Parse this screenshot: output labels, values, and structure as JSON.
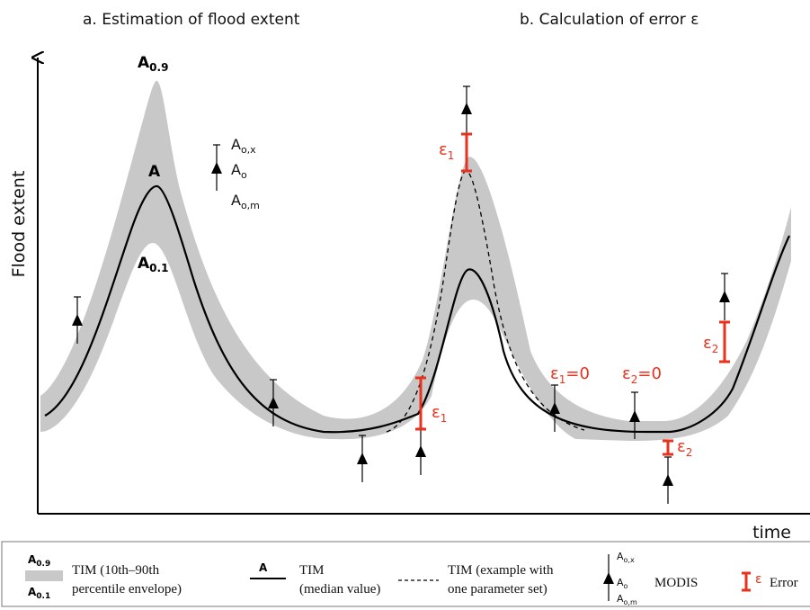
{
  "panels": {
    "a_title": "a. Estimation of flood extent",
    "b_title": "b. Calculation of error ε"
  },
  "axes": {
    "y_label": "Flood extent",
    "x_label": "time"
  },
  "annotations": {
    "a09_main": "A",
    "a09_sub": "0.9",
    "a_main": "A",
    "a01_main": "A",
    "a01_sub": "0.1",
    "aox_main": "A",
    "aox_sub": "o,x",
    "ao_main": "A",
    "ao_sub": "o",
    "aom_main": "A",
    "aom_sub": "o,m",
    "eps_symbol": "ε",
    "eps1_sub": "1",
    "eps2_sub": "2",
    "eps1_zero": "=0",
    "eps2_zero": "=0"
  },
  "legend": {
    "envelope_sym_top_main": "A",
    "envelope_sym_top_sub": "0.9",
    "envelope_sym_bot_main": "A",
    "envelope_sym_bot_sub": "0.1",
    "envelope_line1": "TIM (10th–90th",
    "envelope_line2": "percentile envelope)",
    "median_sym": "A",
    "median_line1": "TIM",
    "median_line2": "(median value)",
    "param_line1": "TIM (example with",
    "param_line2": "one parameter set)",
    "modis_sym_top_main": "A",
    "modis_sym_top_sub": "o,x",
    "modis_sym_mid_main": "A",
    "modis_sym_mid_sub": "o",
    "modis_sym_bot_main": "A",
    "modis_sym_bot_sub": "o,m",
    "modis_label": "MODIS",
    "error_sym": "ε",
    "error_label": "Error"
  },
  "colors": {
    "envelope": "#c8c8c8",
    "median": "#000000",
    "error": "#e8321e",
    "marker": "#000000"
  },
  "icons": {
    "observation": "triangle-up-icon",
    "error": "error-bar-icon"
  }
}
